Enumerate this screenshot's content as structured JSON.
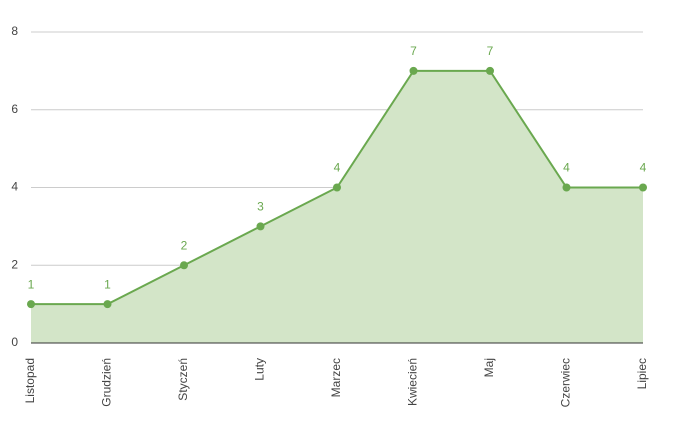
{
  "chart_data": {
    "type": "area",
    "categories": [
      "Listopad",
      "Grudzień",
      "Styczeń",
      "Luty",
      "Marzec",
      "Kwiecień",
      "Maj",
      "Czerwiec",
      "Lipiec"
    ],
    "values": [
      1,
      1,
      2,
      3,
      4,
      7,
      7,
      4,
      4
    ],
    "color": "#6aa84f",
    "fill": "#d3e5c8",
    "ylim": [
      0,
      8
    ],
    "yticks": [
      0,
      2,
      4,
      6,
      8
    ],
    "grid": true,
    "data_labels": true
  }
}
